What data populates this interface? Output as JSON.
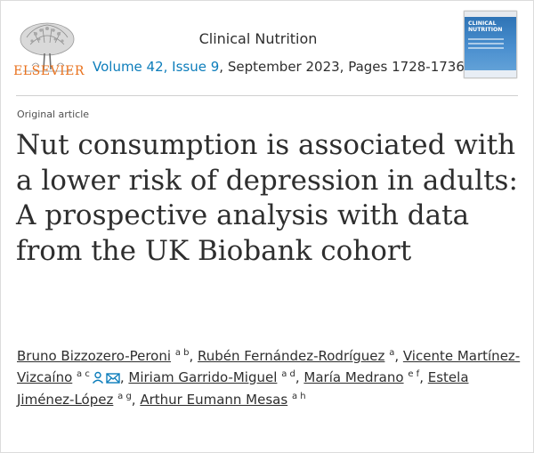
{
  "header": {
    "publisher_logo_text": "ELSEVIER",
    "journal_title": "Clinical Nutrition",
    "issue_link": "Volume 42, Issue 9",
    "issue_rest": ", September 2023, Pages 1728-1736",
    "cover": {
      "title_line1": "CLINICAL",
      "title_line2": "NUTRITION"
    }
  },
  "article": {
    "type_label": "Original article",
    "title": "Nut consumption is associated with a lower risk of depression in adults: A prospective analysis with data from the UK Biobank cohort"
  },
  "authors": [
    {
      "name": "Bruno Bizzozero-Peroni",
      "affiliations": "a b",
      "icons": []
    },
    {
      "name": "Rubén Fernández-Rodríguez",
      "affiliations": "a",
      "icons": []
    },
    {
      "name": "Vicente Martínez-Vizcaíno",
      "affiliations": "a c",
      "icons": [
        "person-icon",
        "envelope-icon"
      ]
    },
    {
      "name": "Miriam Garrido-Miguel",
      "affiliations": "a d",
      "icons": []
    },
    {
      "name": "María Medrano",
      "affiliations": "e f",
      "icons": []
    },
    {
      "name": "Estela Jiménez-López",
      "affiliations": "a g",
      "icons": []
    },
    {
      "name": "Arthur Eumann Mesas",
      "affiliations": "a h",
      "icons": []
    }
  ],
  "colors": {
    "link": "#0c7dbb",
    "publisher_orange": "#e9711c",
    "text": "#2e2e2e"
  }
}
